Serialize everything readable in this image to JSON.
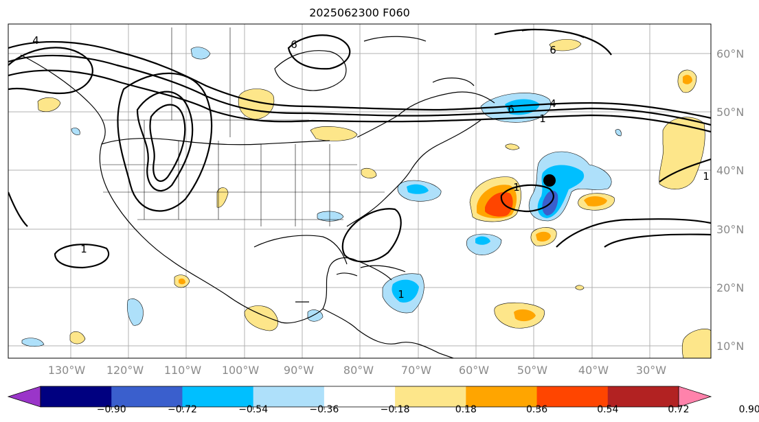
{
  "title": "2025062300 F060",
  "map": {
    "lon_labels": [
      "130°W",
      "120°W",
      "110°W",
      "100°W",
      "90°W",
      "80°W",
      "70°W",
      "60°W",
      "50°W",
      "40°W",
      "30°W"
    ],
    "lat_labels": [
      "60°N",
      "50°N",
      "40°N",
      "30°N",
      "20°N",
      "10°N"
    ],
    "contour_labels": [
      "4",
      "6",
      "6",
      "4",
      "1",
      "1",
      "1",
      "1",
      "6",
      "1"
    ],
    "marker": "storm-center-dot"
  },
  "colorbar": {
    "labels": [
      "−0.90",
      "−0.72",
      "−0.54",
      "−0.36",
      "−0.18",
      "0.18",
      "0.36",
      "0.54",
      "0.72",
      "0.90"
    ],
    "colors": [
      "#9a35c9",
      "#000080",
      "#3a5fcd",
      "#00bfff",
      "#aee0fa",
      "#ffffff",
      "#fde68a",
      "#ffa500",
      "#ff4500",
      "#b22222",
      "#ff82ab"
    ]
  }
}
